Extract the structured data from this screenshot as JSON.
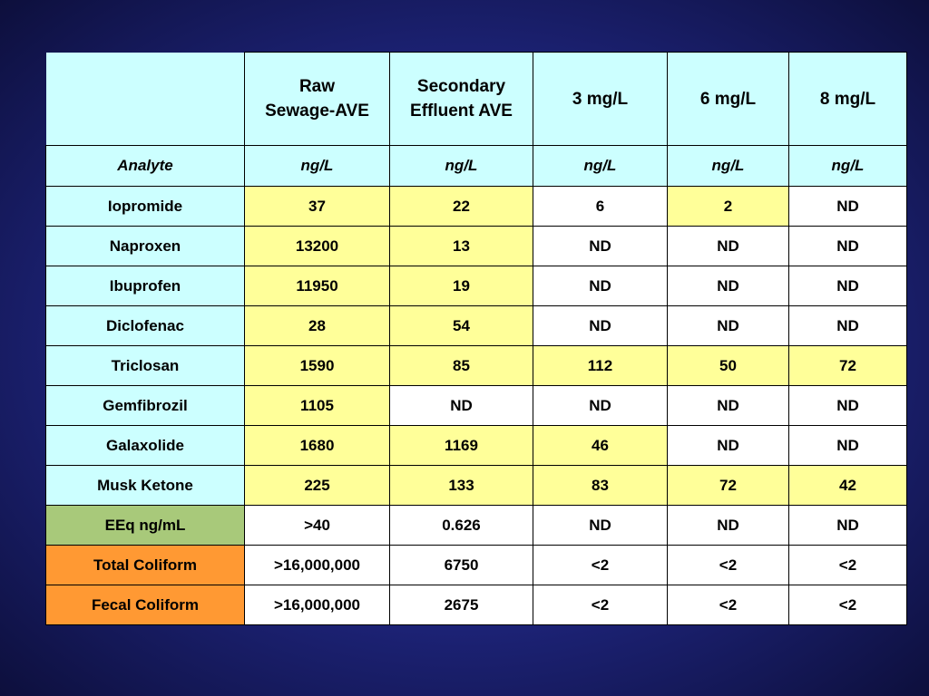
{
  "header": {
    "columns": [
      "Raw\nSewage-AVE",
      "Secondary\nEffluent AVE",
      "3 mg/L",
      "6 mg/L",
      "8 mg/L"
    ]
  },
  "units_row": {
    "label": "Analyte",
    "units": [
      "ng/L",
      "ng/L",
      "ng/L",
      "ng/L",
      "ng/L"
    ]
  },
  "rows": [
    {
      "analyte": "Iopromide",
      "values": [
        "37",
        "22",
        "6",
        "2",
        "ND"
      ]
    },
    {
      "analyte": "Naproxen",
      "values": [
        "13200",
        "13",
        "ND",
        "ND",
        "ND"
      ]
    },
    {
      "analyte": "Ibuprofen",
      "values": [
        "11950",
        "19",
        "ND",
        "ND",
        "ND"
      ]
    },
    {
      "analyte": "Diclofenac",
      "values": [
        "28",
        "54",
        "ND",
        "ND",
        "ND"
      ]
    },
    {
      "analyte": "Triclosan",
      "values": [
        "1590",
        "85",
        "112",
        "50",
        "72"
      ]
    },
    {
      "analyte": "Gemfibrozil",
      "values": [
        "1105",
        "ND",
        "ND",
        "ND",
        "ND"
      ]
    },
    {
      "analyte": "Galaxolide",
      "values": [
        "1680",
        "1169",
        "46",
        "ND",
        "ND"
      ]
    },
    {
      "analyte": "Musk Ketone",
      "values": [
        "225",
        "133",
        "83",
        "72",
        "42"
      ]
    },
    {
      "analyte": "EEq ng/mL",
      "values": [
        ">40",
        "0.626",
        "ND",
        "ND",
        "ND"
      ]
    },
    {
      "analyte": "Total Coliform",
      "values": [
        ">16,000,000",
        "6750",
        "<2",
        "<2",
        "<2"
      ]
    },
    {
      "analyte": "Fecal Coliform",
      "values": [
        ">16,000,000",
        "2675",
        "<2",
        "<2",
        "<2"
      ]
    }
  ],
  "colors": {
    "header_cyan": "#ccffff",
    "highlight_yellow": "#ffff99",
    "plain_white": "#ffffff",
    "eeq_green": "#a8c97a",
    "coliform_orange": "#ff9933",
    "unit_text_green": "#007b1f"
  }
}
